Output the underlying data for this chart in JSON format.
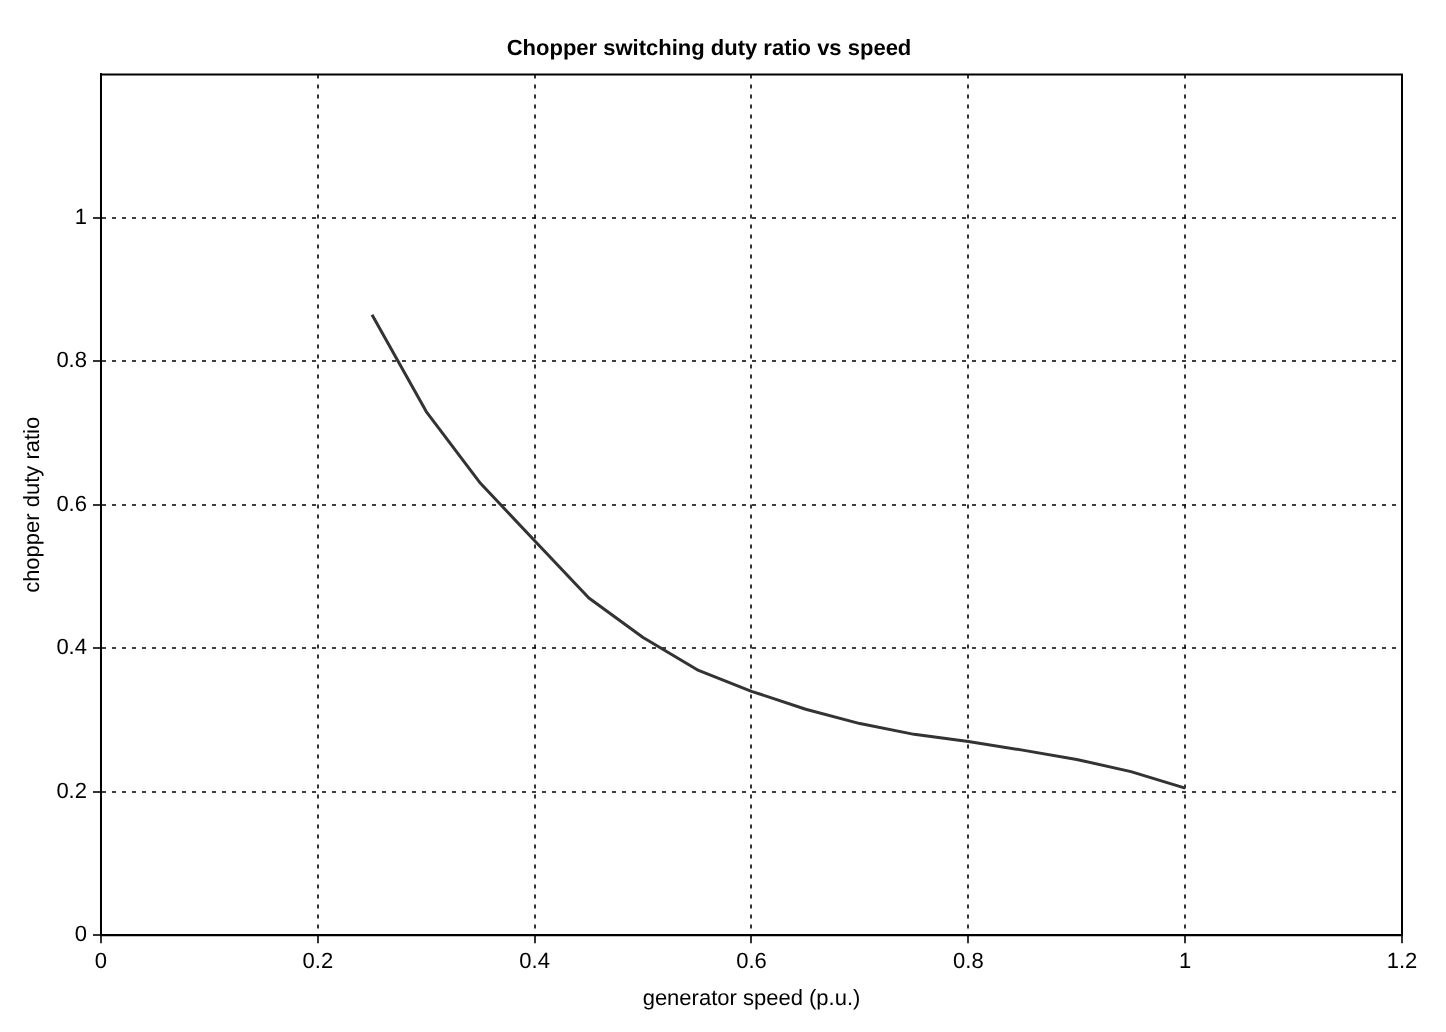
{
  "chart_data": {
    "type": "line",
    "title": "Chopper switching duty ratio vs speed",
    "xlabel": "generator speed (p.u.)",
    "ylabel": "chopper duty ratio",
    "x": [
      0.25,
      0.3,
      0.35,
      0.4,
      0.45,
      0.5,
      0.55,
      0.6,
      0.65,
      0.7,
      0.75,
      0.8,
      0.85,
      0.9,
      0.95,
      1.0
    ],
    "series": [
      {
        "color": "#333333",
        "values": [
          0.865,
          0.73,
          0.63,
          0.55,
          0.47,
          0.415,
          0.37,
          0.34,
          0.315,
          0.295,
          0.28,
          0.27,
          0.258,
          0.245,
          0.228,
          0.205
        ]
      }
    ],
    "xlim": [
      0,
      1.2
    ],
    "xticks": [
      0,
      0.2,
      0.4,
      0.6,
      0.8,
      1,
      1.2
    ],
    "ylim": [
      0,
      1.2
    ],
    "yticks": [
      0,
      0.2,
      0.4,
      0.6,
      0.8,
      1
    ],
    "grid": true,
    "legend": false,
    "marker": "none",
    "line_style": "solid"
  }
}
